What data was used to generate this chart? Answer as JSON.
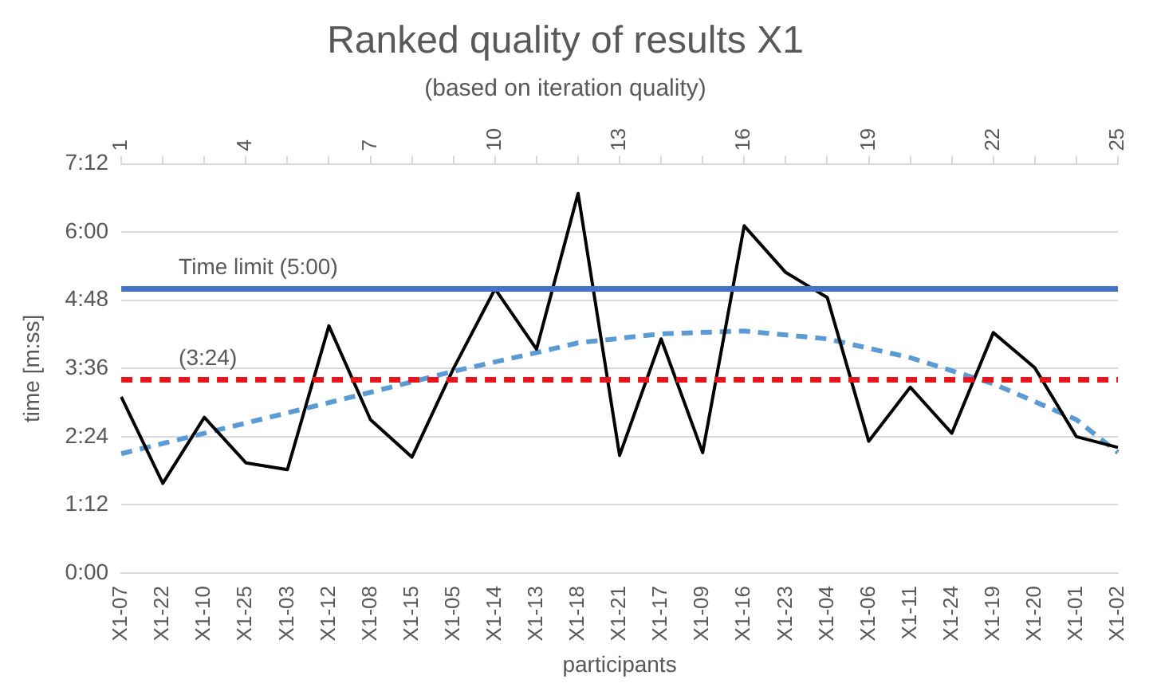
{
  "chart_data": {
    "type": "line",
    "title": "Ranked quality of results X1",
    "subtitle": "(based on iteration quality)",
    "xlabel": "participants",
    "ylabel": "time [m:ss]",
    "categories": [
      "X1-07",
      "X1-22",
      "X1-10",
      "X1-25",
      "X1-03",
      "X1-12",
      "X1-08",
      "X1-15",
      "X1-05",
      "X1-14",
      "X1-13",
      "X1-18",
      "X1-21",
      "X1-17",
      "X1-09",
      "X1-16",
      "X1-23",
      "X1-04",
      "X1-06",
      "X1-11",
      "X1-24",
      "X1-19",
      "X1-20",
      "X1-01",
      "X1-02"
    ],
    "series": [
      {
        "color": "#000000",
        "line_style": "solid",
        "values": [
          3.1,
          1.58,
          2.74,
          1.94,
          1.82,
          4.35,
          2.7,
          2.04,
          3.6,
          5.0,
          3.94,
          6.68,
          2.07,
          4.12,
          2.12,
          6.11,
          5.29,
          4.85,
          2.32,
          3.27,
          2.46,
          4.23,
          3.61,
          2.4,
          2.21
        ]
      },
      {
        "type": "line",
        "color": "#5b9bd5",
        "line_style": "dashed",
        "x": [
          "X1-07",
          "X1-10",
          "X1-03",
          "X1-08",
          "X1-05",
          "X1-13",
          "X1-18",
          "X1-17",
          "X1-16",
          "X1-04",
          "X1-11",
          "X1-19",
          "X1-01",
          "X1-02"
        ],
        "values": [
          2.1,
          2.46,
          2.82,
          3.18,
          3.55,
          3.88,
          4.05,
          4.21,
          4.26,
          4.12,
          3.79,
          3.33,
          2.7,
          2.12
        ]
      }
    ],
    "ylim": [
      0,
      7.2
    ],
    "yticks": [
      {
        "value": 0,
        "label": "0:00"
      },
      {
        "value": 1.2,
        "label": "1:12"
      },
      {
        "value": 2.4,
        "label": "2:24"
      },
      {
        "value": 3.6,
        "label": "3:36"
      },
      {
        "value": 4.8,
        "label": "4:48"
      },
      {
        "value": 6,
        "label": "6:00"
      },
      {
        "value": 7.2,
        "label": "7:12"
      }
    ],
    "x2lim": [
      1,
      25
    ],
    "x2ticks": [
      1,
      {
        "value": 2,
        "label": null
      },
      {
        "value": 3,
        "label": null
      },
      4,
      {
        "value": 5,
        "label": null
      },
      {
        "value": 6,
        "label": null
      },
      7,
      {
        "value": 8,
        "label": null
      },
      {
        "value": 9,
        "label": null
      },
      10,
      {
        "value": 11,
        "label": null
      },
      {
        "value": 12,
        "label": null
      },
      13,
      {
        "value": 14,
        "label": null
      },
      {
        "value": 15,
        "label": null
      },
      16,
      {
        "value": 17,
        "label": null
      },
      {
        "value": 18,
        "label": null
      },
      19,
      {
        "value": 20,
        "label": null
      },
      {
        "value": 21,
        "label": null
      },
      22,
      {
        "value": 23,
        "label": null
      },
      {
        "value": 24,
        "label": null
      },
      25
    ],
    "ref_lines": [
      {
        "axis": "y",
        "value": 5,
        "label": "Time limit (5:00)",
        "color": "#4472c4",
        "line_style": "solid"
      },
      {
        "axis": "y",
        "value": 3.4,
        "label": "(3:24)",
        "color": "#e8141b",
        "line_style": "dashed"
      }
    ],
    "grid": "y",
    "legend": false,
    "marker": "none"
  }
}
